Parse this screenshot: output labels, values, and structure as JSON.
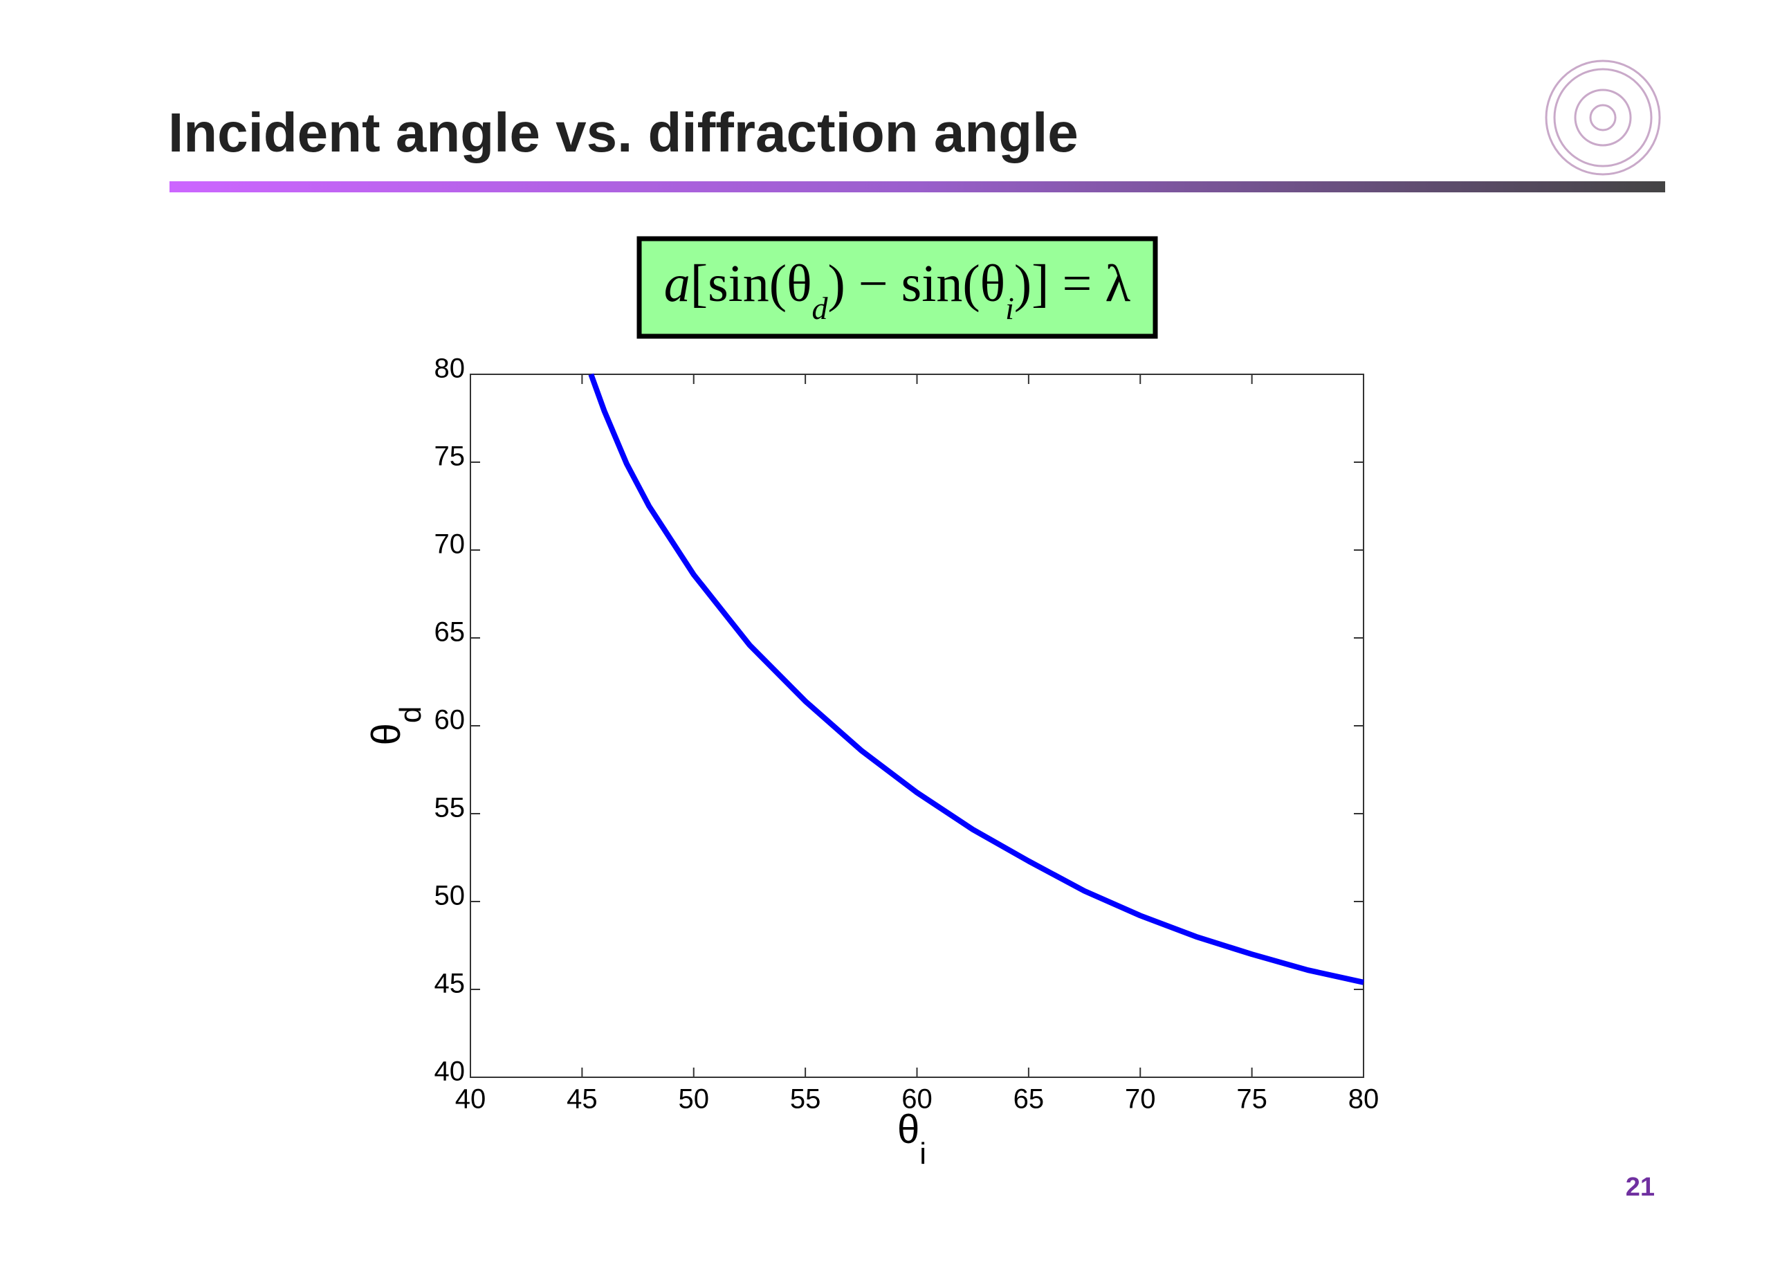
{
  "title": "Incident angle vs. diffraction angle",
  "equation": [
    {
      "text": "a",
      "sub": false
    },
    {
      "text": "[sin(θ",
      "sub": false
    },
    {
      "text": "d",
      "sub": true
    },
    {
      "text": ") − sin(θ",
      "sub": false
    },
    {
      "text": "i",
      "sub": true
    },
    {
      "text": ")] = λ",
      "sub": false
    }
  ],
  "page_number": "21",
  "chart_data": {
    "type": "line",
    "x_label": "θ",
    "x_label_subscript": "i",
    "y_label": "θ",
    "y_label_subscript": "d",
    "x": [
      45.4,
      46,
      47,
      48,
      50,
      52.5,
      55,
      57.5,
      60,
      62.5,
      65,
      67.5,
      70,
      72.5,
      75,
      77.5,
      80
    ],
    "series": [
      {
        "color": "#0000ff",
        "values": [
          80.0,
          77.9,
          74.9,
          72.5,
          68.6,
          64.6,
          61.4,
          58.6,
          56.2,
          54.1,
          52.3,
          50.6,
          49.2,
          48.0,
          47.0,
          46.1,
          45.4
        ]
      }
    ],
    "xlim": [
      40,
      80
    ],
    "xticks": [
      40,
      45,
      50,
      55,
      60,
      65,
      70,
      75,
      80
    ],
    "ylim": [
      40,
      80
    ],
    "yticks": [
      40,
      45,
      50,
      55,
      60,
      65,
      70,
      75,
      80
    ],
    "grid": false
  }
}
